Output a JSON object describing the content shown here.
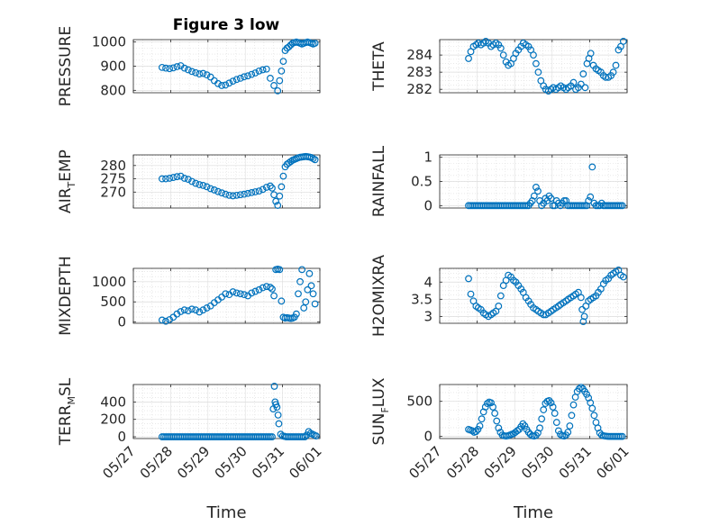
{
  "title": "Figure 3 low",
  "colors": {
    "marker": "#0072BD",
    "axis": "#262626",
    "grid": "#dcdcdc"
  },
  "x_tick_labels": [
    "05/27",
    "05/28",
    "05/29",
    "05/30",
    "05/31",
    "06/01"
  ],
  "x_label": "Time",
  "chart_data": [
    {
      "type": "scatter",
      "ylabel": "PRESSURE",
      "ylim": [
        790,
        1010
      ],
      "yticks": [
        800,
        900,
        1000
      ],
      "grid": true,
      "x": [
        0.77,
        0.87,
        0.97,
        1.07,
        1.17,
        1.27,
        1.37,
        1.47,
        1.57,
        1.67,
        1.77,
        1.87,
        1.97,
        2.07,
        2.17,
        2.27,
        2.37,
        2.47,
        2.57,
        2.67,
        2.77,
        2.87,
        2.97,
        3.07,
        3.17,
        3.27,
        3.37,
        3.47,
        3.57,
        3.67,
        3.77,
        3.87,
        3.92,
        3.97,
        4.02,
        4.07,
        4.12,
        4.17,
        4.22,
        4.27,
        4.32,
        4.37,
        4.42,
        4.47,
        4.52,
        4.57,
        4.62,
        4.67,
        4.72,
        4.77,
        4.82,
        4.87
      ],
      "y": [
        895,
        892,
        890,
        893,
        898,
        902,
        892,
        885,
        878,
        873,
        868,
        870,
        864,
        855,
        840,
        828,
        820,
        822,
        830,
        838,
        845,
        850,
        856,
        860,
        866,
        872,
        880,
        885,
        888,
        850,
        820,
        798,
        840,
        880,
        920,
        965,
        975,
        980,
        988,
        995,
        998,
        1000,
        998,
        995,
        992,
        995,
        998,
        1000,
        998,
        995,
        992,
        995
      ]
    },
    {
      "type": "scatter",
      "ylabel": "THETA",
      "ylim": [
        281.8,
        284.9
      ],
      "yticks": [
        282,
        283,
        284
      ],
      "grid": true,
      "x": [
        0.77,
        0.83,
        0.9,
        0.97,
        1.03,
        1.1,
        1.17,
        1.23,
        1.3,
        1.37,
        1.43,
        1.5,
        1.57,
        1.63,
        1.7,
        1.77,
        1.83,
        1.9,
        1.97,
        2.03,
        2.1,
        2.17,
        2.23,
        2.3,
        2.37,
        2.43,
        2.5,
        2.57,
        2.63,
        2.7,
        2.77,
        2.83,
        2.9,
        2.97,
        3.03,
        3.1,
        3.17,
        3.23,
        3.3,
        3.37,
        3.43,
        3.5,
        3.57,
        3.63,
        3.7,
        3.77,
        3.83,
        3.88,
        3.93,
        3.98,
        4.03,
        4.1,
        4.17,
        4.23,
        4.3,
        4.37,
        4.43,
        4.5,
        4.57,
        4.63,
        4.7,
        4.77,
        4.83,
        4.9
      ],
      "y": [
        283.8,
        284.2,
        284.5,
        284.6,
        284.7,
        284.6,
        284.7,
        284.8,
        284.7,
        284.5,
        284.6,
        284.7,
        284.6,
        284.4,
        284.0,
        283.6,
        283.4,
        283.5,
        283.8,
        284.1,
        284.3,
        284.5,
        284.7,
        284.6,
        284.5,
        284.3,
        284.0,
        283.5,
        283.0,
        282.5,
        282.2,
        282.0,
        281.9,
        282.0,
        282.1,
        282.0,
        282.1,
        282.2,
        282.1,
        282.0,
        282.1,
        282.2,
        282.4,
        282.0,
        282.1,
        282.3,
        282.9,
        282.1,
        283.5,
        283.8,
        284.1,
        283.4,
        283.2,
        283.1,
        283.0,
        282.8,
        282.7,
        282.7,
        282.8,
        283.0,
        283.4,
        284.3,
        284.5,
        284.8
      ]
    },
    {
      "type": "scatter",
      "ylabel": "AIR_TEMP",
      "ylim": [
        264,
        284
      ],
      "yticks": [
        270,
        275,
        280
      ],
      "grid": true,
      "x": [
        0.77,
        0.87,
        0.97,
        1.07,
        1.17,
        1.27,
        1.37,
        1.47,
        1.57,
        1.67,
        1.77,
        1.87,
        1.97,
        2.07,
        2.17,
        2.27,
        2.37,
        2.47,
        2.57,
        2.67,
        2.77,
        2.87,
        2.97,
        3.07,
        3.17,
        3.27,
        3.37,
        3.47,
        3.57,
        3.67,
        3.72,
        3.77,
        3.82,
        3.87,
        3.92,
        3.97,
        4.02,
        4.07,
        4.12,
        4.17,
        4.22,
        4.27,
        4.32,
        4.37,
        4.42,
        4.47,
        4.52,
        4.57,
        4.62,
        4.67,
        4.72,
        4.77,
        4.82,
        4.87
      ],
      "y": [
        275.0,
        275.0,
        275.2,
        275.5,
        275.8,
        276.0,
        275.2,
        274.8,
        274.0,
        273.3,
        272.8,
        272.5,
        272.0,
        271.3,
        270.8,
        270.2,
        269.7,
        269.2,
        268.8,
        268.6,
        268.8,
        269.0,
        269.2,
        269.5,
        269.8,
        270.1,
        270.4,
        271.0,
        271.8,
        272.3,
        271.5,
        269.0,
        266.5,
        265.0,
        268.5,
        272.0,
        276.0,
        279.5,
        280.5,
        281.0,
        281.5,
        282.0,
        282.3,
        282.6,
        282.9,
        283.1,
        283.2,
        283.3,
        283.4,
        283.3,
        283.2,
        283.0,
        282.6,
        282.2
      ]
    },
    {
      "type": "scatter",
      "ylabel": "RAINFALL",
      "ylim": [
        -0.05,
        1.05
      ],
      "yticks": [
        0,
        0.5,
        1
      ],
      "grid": true,
      "x": [
        0.77,
        0.82,
        0.87,
        0.92,
        0.97,
        1.02,
        1.07,
        1.12,
        1.17,
        1.22,
        1.27,
        1.32,
        1.37,
        1.42,
        1.47,
        1.52,
        1.57,
        1.62,
        1.67,
        1.72,
        1.77,
        1.82,
        1.87,
        1.92,
        1.97,
        2.02,
        2.07,
        2.12,
        2.17,
        2.22,
        2.27,
        2.32,
        2.37,
        2.42,
        2.47,
        2.52,
        2.57,
        2.62,
        2.67,
        2.72,
        2.77,
        2.82,
        2.87,
        2.92,
        2.97,
        3.02,
        3.07,
        3.12,
        3.17,
        3.22,
        3.27,
        3.32,
        3.37,
        3.42,
        3.47,
        3.52,
        3.57,
        3.62,
        3.67,
        3.72,
        3.77,
        3.82,
        3.87,
        3.92,
        3.97,
        4.02,
        4.07,
        4.12,
        4.17,
        4.22,
        4.27,
        4.32,
        4.37,
        4.42,
        4.47,
        4.52,
        4.57,
        4.62,
        4.67,
        4.72,
        4.77,
        4.82,
        4.87
      ],
      "y": [
        0,
        0,
        0,
        0,
        0,
        0,
        0,
        0,
        0,
        0,
        0,
        0,
        0,
        0,
        0,
        0,
        0,
        0,
        0,
        0,
        0,
        0,
        0,
        0,
        0,
        0,
        0,
        0,
        0,
        0,
        0,
        0,
        0,
        0.05,
        0.1,
        0.2,
        0.38,
        0.3,
        0.1,
        0,
        0.05,
        0.15,
        0.1,
        0.2,
        0.15,
        0,
        0,
        0.1,
        0.05,
        0,
        0.05,
        0.1,
        0.1,
        0,
        0,
        0,
        0,
        0,
        0,
        0,
        0,
        0,
        0,
        0,
        0.1,
        0.18,
        0.8,
        0.05,
        0,
        0,
        0,
        0.05,
        0,
        0,
        0,
        0,
        0,
        0,
        0,
        0,
        0,
        0,
        0
      ]
    },
    {
      "type": "scatter",
      "ylabel": "MIXDEPTH",
      "ylim": [
        -30,
        1330
      ],
      "yticks": [
        0,
        500,
        1000
      ],
      "grid": true,
      "x": [
        0.77,
        0.87,
        0.97,
        1.07,
        1.17,
        1.27,
        1.37,
        1.47,
        1.57,
        1.67,
        1.77,
        1.87,
        1.97,
        2.07,
        2.17,
        2.27,
        2.37,
        2.47,
        2.57,
        2.67,
        2.77,
        2.87,
        2.97,
        3.07,
        3.17,
        3.27,
        3.37,
        3.47,
        3.57,
        3.67,
        3.72,
        3.77,
        3.82,
        3.87,
        3.92,
        3.97,
        4.02,
        4.07,
        4.12,
        4.17,
        4.22,
        4.27,
        4.32,
        4.37,
        4.42,
        4.47,
        4.52,
        4.57,
        4.62,
        4.67,
        4.72,
        4.77,
        4.82,
        4.87
      ],
      "y": [
        50,
        20,
        60,
        120,
        200,
        260,
        300,
        280,
        320,
        300,
        250,
        300,
        350,
        400,
        480,
        550,
        620,
        700,
        680,
        750,
        720,
        700,
        680,
        650,
        720,
        760,
        800,
        850,
        880,
        860,
        820,
        650,
        1300,
        1310,
        1300,
        520,
        120,
        100,
        110,
        100,
        90,
        100,
        120,
        200,
        700,
        1000,
        1300,
        350,
        500,
        800,
        1200,
        900,
        700,
        450
      ]
    },
    {
      "type": "scatter",
      "ylabel": "H2OMIXRA",
      "ylim": [
        2.8,
        4.4
      ],
      "yticks": [
        3,
        3.5,
        4
      ],
      "grid": true,
      "x": [
        0.77,
        0.83,
        0.9,
        0.97,
        1.03,
        1.1,
        1.17,
        1.23,
        1.3,
        1.37,
        1.43,
        1.5,
        1.57,
        1.63,
        1.7,
        1.77,
        1.83,
        1.9,
        1.97,
        2.03,
        2.1,
        2.17,
        2.23,
        2.3,
        2.37,
        2.43,
        2.5,
        2.57,
        2.63,
        2.7,
        2.77,
        2.83,
        2.9,
        2.97,
        3.03,
        3.1,
        3.17,
        3.23,
        3.3,
        3.37,
        3.43,
        3.5,
        3.57,
        3.63,
        3.7,
        3.77,
        3.8,
        3.83,
        3.86,
        3.9,
        3.97,
        4.03,
        4.1,
        4.17,
        4.23,
        4.3,
        4.37,
        4.43,
        4.5,
        4.57,
        4.63,
        4.7,
        4.77,
        4.83,
        4.9
      ],
      "y": [
        4.1,
        3.65,
        3.45,
        3.3,
        3.25,
        3.2,
        3.1,
        3.05,
        3.0,
        3.05,
        3.1,
        3.15,
        3.3,
        3.6,
        3.9,
        4.05,
        4.2,
        4.15,
        4.05,
        4.0,
        3.9,
        3.8,
        3.7,
        3.55,
        3.45,
        3.35,
        3.25,
        3.2,
        3.15,
        3.1,
        3.05,
        3.05,
        3.1,
        3.15,
        3.2,
        3.25,
        3.3,
        3.35,
        3.4,
        3.45,
        3.5,
        3.55,
        3.6,
        3.65,
        3.7,
        3.55,
        3.2,
        2.85,
        3.0,
        3.3,
        3.45,
        3.5,
        3.55,
        3.6,
        3.7,
        3.8,
        3.95,
        4.05,
        4.1,
        4.2,
        4.25,
        4.3,
        4.35,
        4.2,
        4.15
      ]
    },
    {
      "type": "scatter",
      "ylabel": "TERR_MSL",
      "ylim": [
        -20,
        600
      ],
      "yticks": [
        0,
        200,
        400
      ],
      "grid": true,
      "x": [
        0.77,
        0.82,
        0.87,
        0.92,
        0.97,
        1.02,
        1.07,
        1.12,
        1.17,
        1.22,
        1.27,
        1.32,
        1.37,
        1.42,
        1.47,
        1.52,
        1.57,
        1.62,
        1.67,
        1.72,
        1.77,
        1.82,
        1.87,
        1.92,
        1.97,
        2.02,
        2.07,
        2.12,
        2.17,
        2.22,
        2.27,
        2.32,
        2.37,
        2.42,
        2.47,
        2.52,
        2.57,
        2.62,
        2.67,
        2.72,
        2.77,
        2.82,
        2.87,
        2.92,
        2.97,
        3.02,
        3.07,
        3.12,
        3.17,
        3.22,
        3.27,
        3.32,
        3.37,
        3.42,
        3.47,
        3.52,
        3.57,
        3.62,
        3.67,
        3.72,
        3.75,
        3.78,
        3.8,
        3.82,
        3.85,
        3.88,
        3.9,
        3.95,
        4.0,
        4.05,
        4.1,
        4.15,
        4.2,
        4.25,
        4.3,
        4.35,
        4.4,
        4.45,
        4.5,
        4.55,
        4.6,
        4.65,
        4.7,
        4.75,
        4.8,
        4.85,
        4.9
      ],
      "y": [
        0,
        0,
        0,
        0,
        0,
        0,
        0,
        0,
        0,
        0,
        0,
        0,
        0,
        0,
        0,
        0,
        0,
        0,
        0,
        0,
        0,
        0,
        0,
        0,
        0,
        0,
        0,
        0,
        0,
        0,
        0,
        0,
        0,
        0,
        0,
        0,
        0,
        0,
        0,
        0,
        0,
        0,
        0,
        0,
        0,
        0,
        0,
        0,
        0,
        0,
        0,
        0,
        0,
        0,
        0,
        0,
        0,
        0,
        0,
        0,
        320,
        580,
        400,
        370,
        340,
        250,
        150,
        30,
        10,
        5,
        0,
        0,
        0,
        0,
        0,
        0,
        0,
        0,
        0,
        0,
        0,
        20,
        60,
        40,
        30,
        20,
        10
      ]
    },
    {
      "type": "scatter",
      "ylabel": "SUN_FLUX",
      "ylim": [
        -30,
        740
      ],
      "yticks": [
        0,
        500
      ],
      "grid": true,
      "x": [
        0.77,
        0.82,
        0.87,
        0.92,
        0.97,
        1.02,
        1.07,
        1.12,
        1.17,
        1.22,
        1.27,
        1.32,
        1.37,
        1.42,
        1.47,
        1.52,
        1.57,
        1.62,
        1.67,
        1.72,
        1.77,
        1.82,
        1.87,
        1.92,
        1.97,
        2.02,
        2.07,
        2.12,
        2.17,
        2.22,
        2.27,
        2.32,
        2.37,
        2.42,
        2.47,
        2.52,
        2.57,
        2.62,
        2.67,
        2.72,
        2.77,
        2.82,
        2.87,
        2.92,
        2.97,
        3.02,
        3.07,
        3.12,
        3.17,
        3.22,
        3.27,
        3.32,
        3.37,
        3.42,
        3.47,
        3.52,
        3.57,
        3.62,
        3.67,
        3.72,
        3.77,
        3.82,
        3.87,
        3.92,
        3.97,
        4.02,
        4.07,
        4.12,
        4.17,
        4.22,
        4.27,
        4.32,
        4.37,
        4.42,
        4.47,
        4.52,
        4.57,
        4.62,
        4.67,
        4.72,
        4.77,
        4.82,
        4.87
      ],
      "y": [
        100,
        90,
        80,
        60,
        70,
        100,
        150,
        250,
        350,
        420,
        470,
        490,
        480,
        420,
        330,
        220,
        120,
        60,
        20,
        10,
        5,
        10,
        20,
        30,
        40,
        60,
        80,
        100,
        140,
        180,
        150,
        100,
        60,
        30,
        10,
        5,
        15,
        50,
        120,
        250,
        380,
        470,
        500,
        510,
        480,
        420,
        330,
        200,
        80,
        30,
        10,
        5,
        20,
        60,
        150,
        300,
        450,
        560,
        640,
        680,
        700,
        680,
        640,
        600,
        550,
        480,
        400,
        300,
        200,
        120,
        50,
        20,
        10,
        5,
        2,
        0,
        0,
        0,
        0,
        0,
        0,
        0,
        0
      ]
    }
  ]
}
